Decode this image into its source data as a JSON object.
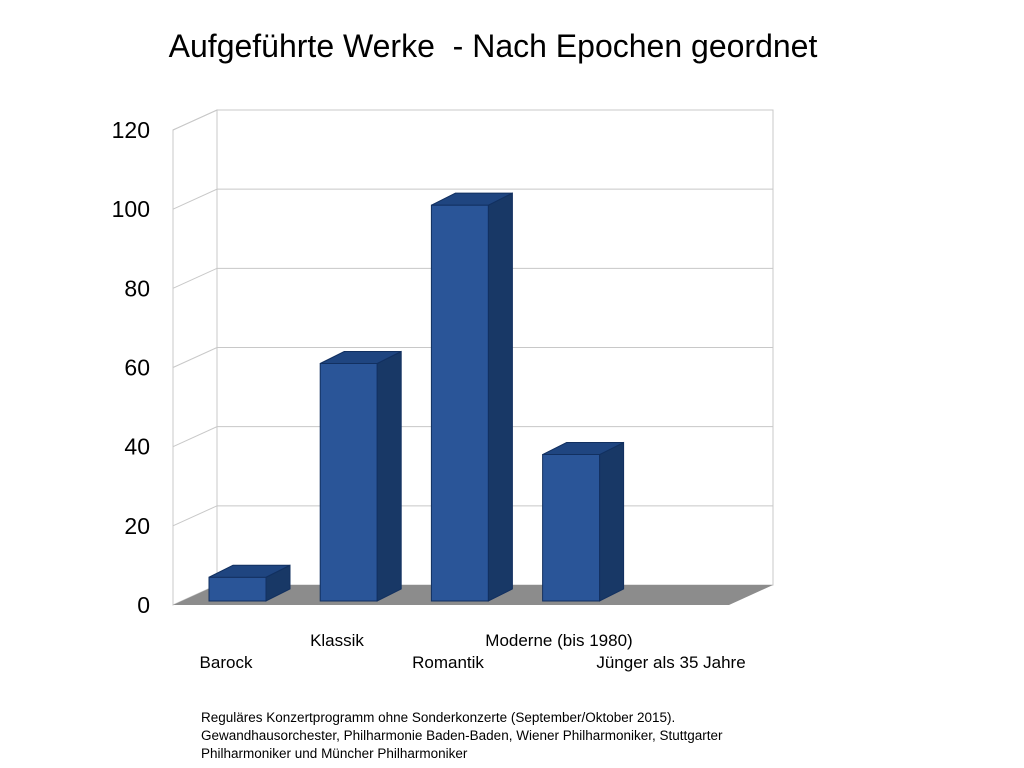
{
  "chart_data": {
    "type": "bar",
    "title": "Aufgeführte Werke  - Nach Epochen geordnet",
    "categories": [
      "Barock",
      "Klassik",
      "Romantik",
      "Moderne (bis 1980)",
      "Jünger als 35 Jahre"
    ],
    "values": [
      6,
      60,
      100,
      37,
      0
    ],
    "xlabel": "",
    "ylabel": "",
    "ylim": [
      0,
      120
    ],
    "yticks": [
      "0",
      "20",
      "40",
      "60",
      "80",
      "100",
      "120"
    ],
    "grid": true,
    "bar_color": "#2a5598",
    "bar_side_color": "#183866",
    "bar_top_color": "#1f4580",
    "floor_color": "#8c8c8c"
  },
  "footnote": "Reguläres Konzertprogramm ohne Sonderkonzerte (September/Oktober 2015). Gewandhausorchester, Philharmonie Baden-Baden, Wiener Philharmoniker, Stuttgarter Philharmoniker und Müncher Philharmoniker"
}
